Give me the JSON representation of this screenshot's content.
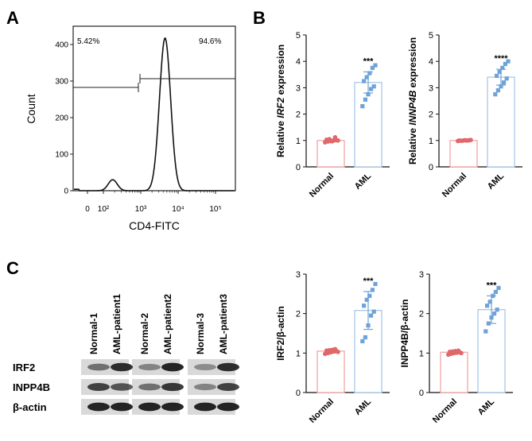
{
  "colors": {
    "normal_bar": "#ffffff",
    "normal_border": "#f4a6a6",
    "normal_dot": "#e0676a",
    "aml_bar": "#ffffff",
    "aml_border": "#a9c8e8",
    "aml_dot": "#6ea3d8",
    "axis": "#111111",
    "blot_band": "#1a1a1a",
    "blot_bg": "#d9d9d9"
  },
  "panel_a": {
    "label": "A",
    "ylabel": "Count",
    "xlabel": "CD4-FITC",
    "gate_left_pct": "5.42%",
    "gate_right_pct": "94.6%",
    "chart_data": {
      "type": "histogram",
      "xscale": "log",
      "xticks": [
        "0",
        "10²",
        "10³",
        "10⁴",
        "10⁵"
      ],
      "yticks": [
        0,
        100,
        200,
        300,
        400
      ],
      "ylim": [
        0,
        450
      ],
      "peaks": [
        {
          "position_log10": 2.25,
          "count": 30
        },
        {
          "position_log10": 3.65,
          "count": 418
        }
      ]
    }
  },
  "panel_b": {
    "label": "B",
    "charts": [
      {
        "id": "b1",
        "ylabel_prefix": "Relative ",
        "ylabel_italic": "IRF2",
        "ylabel_suffix": " expression",
        "significance": "***",
        "chart_data": {
          "type": "bar",
          "categories": [
            "Normal",
            "AML"
          ],
          "values": [
            1.0,
            3.2
          ],
          "errors": [
            0.05,
            0.4
          ],
          "ylim": [
            0,
            5
          ],
          "yticks": [
            "0",
            "1",
            "2",
            "3",
            "4",
            "5"
          ],
          "points": [
            [
              0.93,
              0.96,
              0.98,
              1.0,
              1.01,
              1.03,
              1.05,
              0.97,
              1.12,
              1.0
            ],
            [
              2.3,
              2.55,
              2.75,
              2.95,
              3.05,
              3.25,
              3.4,
              3.55,
              3.75,
              3.85
            ]
          ]
        }
      },
      {
        "id": "b2",
        "ylabel_prefix": "Relative ",
        "ylabel_italic": "INNP4B",
        "ylabel_suffix": " expression",
        "significance": "****",
        "chart_data": {
          "type": "bar",
          "categories": [
            "Normal",
            "AML"
          ],
          "values": [
            1.0,
            3.4
          ],
          "errors": [
            0.02,
            0.3
          ],
          "ylim": [
            0,
            5
          ],
          "yticks": [
            "0",
            "1",
            "2",
            "3",
            "4",
            "5"
          ],
          "points": [
            [
              0.98,
              0.99,
              1.0,
              1.0,
              1.01,
              1.0,
              0.99,
              1.01,
              1.0,
              1.02
            ],
            [
              2.75,
              2.9,
              3.05,
              3.2,
              3.35,
              3.45,
              3.6,
              3.75,
              3.9,
              4.0
            ]
          ]
        }
      }
    ]
  },
  "panel_c": {
    "label": "C",
    "lane_labels": [
      "Normal-1",
      "AML-patient1",
      "Normal-2",
      "AML-patient2",
      "Normal-3",
      "AML-patient3"
    ],
    "row_labels": [
      "IRF2",
      "INPP4B",
      "β-actin"
    ],
    "charts": [
      {
        "id": "c1",
        "ylabel": "IRF2/β-actin",
        "significance": "***",
        "chart_data": {
          "type": "bar",
          "categories": [
            "Normal",
            "AML"
          ],
          "values": [
            1.05,
            2.08
          ],
          "errors": [
            0.05,
            0.48
          ],
          "ylim": [
            0,
            3
          ],
          "yticks": [
            "0",
            "1",
            "2",
            "3"
          ],
          "points": [
            [
              0.98,
              1.0,
              1.02,
              1.04,
              1.05,
              1.06,
              1.07,
              1.08,
              1.1,
              1.03
            ],
            [
              1.3,
              1.4,
              1.7,
              1.95,
              2.05,
              2.2,
              2.35,
              2.45,
              2.6,
              2.75
            ]
          ]
        }
      },
      {
        "id": "c2",
        "ylabel": "INPP4B/β-actin",
        "significance": "***",
        "chart_data": {
          "type": "bar",
          "categories": [
            "Normal",
            "AML"
          ],
          "values": [
            1.02,
            2.1
          ],
          "errors": [
            0.04,
            0.35
          ],
          "ylim": [
            0,
            3
          ],
          "yticks": [
            "0",
            "1",
            "2",
            "3"
          ],
          "points": [
            [
              0.96,
              0.98,
              1.0,
              1.01,
              1.02,
              1.03,
              1.04,
              1.05,
              1.06,
              1.0
            ],
            [
              1.55,
              1.75,
              1.9,
              2.0,
              2.1,
              2.2,
              2.3,
              2.45,
              2.55,
              2.65
            ]
          ]
        }
      }
    ]
  }
}
